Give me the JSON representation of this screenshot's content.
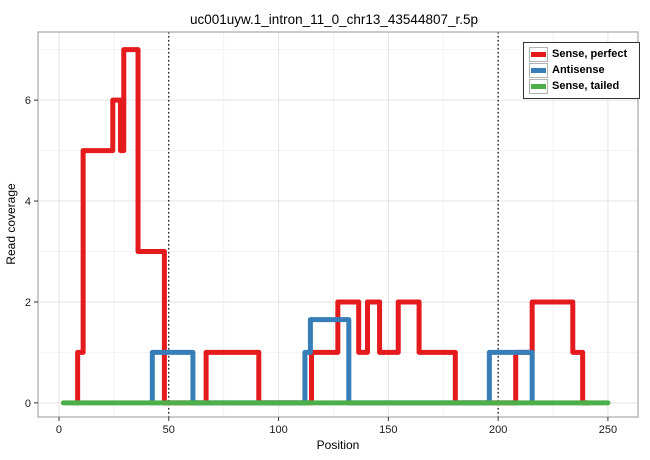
{
  "chart_data": {
    "type": "line",
    "subtype": "step-coverage",
    "title": "uc001uyw.1_intron_11_0_chr13_43544807_r.5p",
    "xlabel": "Position",
    "ylabel": "Read coverage",
    "xlim": [
      -9.56,
      263.7
    ],
    "ylim": [
      -0.28,
      7.35
    ],
    "x_ticks": [
      0,
      50,
      100,
      150,
      200,
      250
    ],
    "y_ticks": [
      0,
      2,
      4,
      6
    ],
    "x_minor_gridlines": [
      25,
      75,
      125,
      175,
      225
    ],
    "y_minor_gridlines": [
      1,
      3,
      5,
      7
    ],
    "grid": true,
    "legend_position": "top-right",
    "annotations": {
      "vlines": {
        "positions": [
          50,
          200
        ],
        "linetype": "dotted",
        "color": "#000000"
      }
    },
    "series": [
      {
        "name": "Sense, perfect",
        "color": "#E41A1C",
        "steps": [
          [
            8.5,
            11,
            1
          ],
          [
            11,
            24.5,
            5
          ],
          [
            24.5,
            28,
            6
          ],
          [
            28,
            29.5,
            5
          ],
          [
            29.5,
            36,
            7
          ],
          [
            36,
            48,
            3
          ],
          [
            48,
            67,
            0
          ],
          [
            67,
            91,
            1
          ],
          [
            91,
            115,
            0
          ],
          [
            115,
            127,
            1
          ],
          [
            127,
            136.5,
            2
          ],
          [
            136.5,
            140.5,
            1
          ],
          [
            140.5,
            146,
            2
          ],
          [
            146,
            154.5,
            1
          ],
          [
            154.5,
            164,
            2
          ],
          [
            164,
            180.5,
            1
          ],
          [
            180.5,
            208,
            0
          ],
          [
            208,
            215.5,
            1
          ],
          [
            215.5,
            234,
            2
          ],
          [
            234,
            238.5,
            1
          ],
          [
            238.5,
            241,
            0
          ]
        ]
      },
      {
        "name": "Antisense",
        "color": "#377EB8",
        "steps": [
          [
            42.5,
            61,
            1
          ],
          [
            61,
            112,
            0
          ],
          [
            112,
            114.5,
            1
          ],
          [
            114.5,
            132,
            1.65
          ],
          [
            132,
            196,
            0
          ],
          [
            196,
            215.5,
            1
          ]
        ]
      },
      {
        "name": "Sense, tailed",
        "color": "#4DAF4A",
        "steps": [
          [
            2,
            250,
            0
          ]
        ]
      }
    ]
  }
}
